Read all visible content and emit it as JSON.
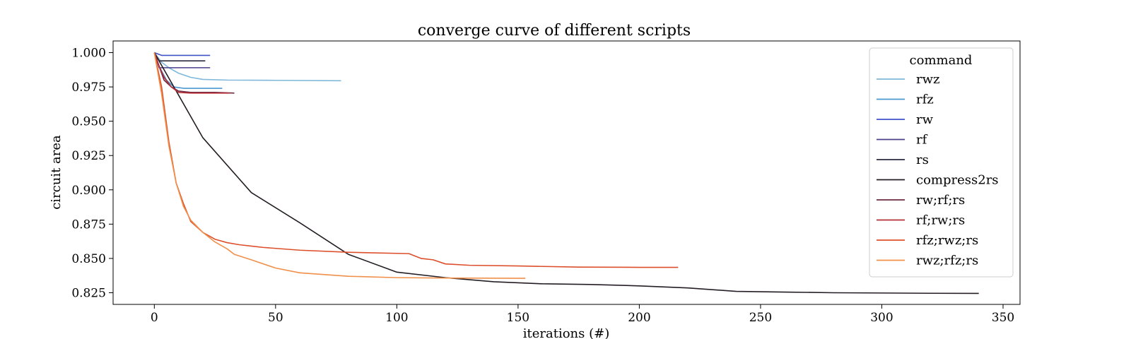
{
  "chart_data": {
    "type": "line",
    "title": "converge curve of different scripts",
    "xlabel": "iterations (#)",
    "ylabel": "circuit area",
    "xlim": [
      -17,
      357
    ],
    "ylim": [
      0.8165,
      1.0085
    ],
    "xticks": [
      0,
      50,
      100,
      150,
      200,
      250,
      300,
      350
    ],
    "yticks": [
      0.825,
      0.85,
      0.875,
      0.9,
      0.925,
      0.95,
      0.975,
      1.0
    ],
    "ytick_format": 3,
    "grid": false,
    "legend": {
      "title": "command",
      "placement": "right"
    },
    "series": [
      {
        "name": "rwz",
        "color": "#7fb8da",
        "points": [
          [
            0,
            1.0
          ],
          [
            3,
            0.993
          ],
          [
            6,
            0.989
          ],
          [
            10,
            0.985
          ],
          [
            15,
            0.982
          ],
          [
            20,
            0.9805
          ],
          [
            30,
            0.98
          ],
          [
            50,
            0.9798
          ],
          [
            77,
            0.9795
          ]
        ]
      },
      {
        "name": "rfz",
        "color": "#4a98d0",
        "points": [
          [
            0,
            1.0
          ],
          [
            2,
            0.99
          ],
          [
            5,
            0.98
          ],
          [
            8,
            0.975
          ],
          [
            12,
            0.974
          ],
          [
            20,
            0.974
          ],
          [
            28,
            0.974
          ]
        ]
      },
      {
        "name": "rw",
        "color": "#3f52c9",
        "points": [
          [
            0,
            1.0
          ],
          [
            3,
            0.998
          ],
          [
            10,
            0.998
          ],
          [
            23,
            0.998
          ]
        ]
      },
      {
        "name": "rf",
        "color": "#4a3f8a",
        "points": [
          [
            0,
            1.0
          ],
          [
            2,
            0.989
          ],
          [
            10,
            0.989
          ],
          [
            23,
            0.989
          ]
        ]
      },
      {
        "name": "rs",
        "color": "#2a2a3f",
        "points": [
          [
            0,
            1.0
          ],
          [
            2,
            0.994
          ],
          [
            10,
            0.994
          ],
          [
            21,
            0.994
          ]
        ]
      },
      {
        "name": "compress2rs",
        "color": "#241e24",
        "points": [
          [
            0,
            1.0
          ],
          [
            20,
            0.938
          ],
          [
            40,
            0.898
          ],
          [
            60,
            0.876
          ],
          [
            80,
            0.853
          ],
          [
            100,
            0.84
          ],
          [
            120,
            0.836
          ],
          [
            140,
            0.833
          ],
          [
            160,
            0.8315
          ],
          [
            180,
            0.831
          ],
          [
            200,
            0.83
          ],
          [
            220,
            0.8285
          ],
          [
            240,
            0.826
          ],
          [
            260,
            0.8255
          ],
          [
            280,
            0.825
          ],
          [
            300,
            0.8248
          ],
          [
            320,
            0.8246
          ],
          [
            340,
            0.8245
          ]
        ]
      },
      {
        "name": "rw;rf;rs",
        "color": "#6b2a3f",
        "points": [
          [
            0,
            1.0
          ],
          [
            2,
            0.99
          ],
          [
            4,
            0.98
          ],
          [
            7,
            0.975
          ],
          [
            10,
            0.972
          ],
          [
            15,
            0.971
          ],
          [
            25,
            0.971
          ],
          [
            33,
            0.9705
          ]
        ]
      },
      {
        "name": "rf;rw;rs",
        "color": "#b42d37",
        "points": [
          [
            0,
            1.0
          ],
          [
            2,
            0.99
          ],
          [
            4,
            0.982
          ],
          [
            7,
            0.975
          ],
          [
            10,
            0.971
          ],
          [
            15,
            0.9705
          ],
          [
            25,
            0.9705
          ],
          [
            31,
            0.9705
          ]
        ]
      },
      {
        "name": "rfz;rwz;rs",
        "color": "#dc4f2a",
        "points": [
          [
            0,
            1.0
          ],
          [
            3,
            0.975
          ],
          [
            6,
            0.935
          ],
          [
            9,
            0.905
          ],
          [
            12,
            0.89
          ],
          [
            15,
            0.877
          ],
          [
            20,
            0.869
          ],
          [
            25,
            0.864
          ],
          [
            30,
            0.8615
          ],
          [
            35,
            0.86
          ],
          [
            40,
            0.859
          ],
          [
            45,
            0.858
          ],
          [
            60,
            0.856
          ],
          [
            80,
            0.8545
          ],
          [
            105,
            0.8535
          ],
          [
            110,
            0.85
          ],
          [
            115,
            0.849
          ],
          [
            120,
            0.846
          ],
          [
            130,
            0.845
          ],
          [
            150,
            0.8445
          ],
          [
            175,
            0.8437
          ],
          [
            200,
            0.8435
          ],
          [
            216,
            0.8435
          ]
        ]
      },
      {
        "name": "rwz;rfz;rs",
        "color": "#f0904a",
        "points": [
          [
            0,
            1.0
          ],
          [
            3,
            0.97
          ],
          [
            6,
            0.932
          ],
          [
            9,
            0.905
          ],
          [
            12,
            0.888
          ],
          [
            15,
            0.878
          ],
          [
            20,
            0.869
          ],
          [
            25,
            0.862
          ],
          [
            30,
            0.857
          ],
          [
            33,
            0.853
          ],
          [
            40,
            0.849
          ],
          [
            50,
            0.843
          ],
          [
            60,
            0.8395
          ],
          [
            80,
            0.837
          ],
          [
            100,
            0.836
          ],
          [
            120,
            0.8357
          ],
          [
            153,
            0.8355
          ]
        ]
      }
    ]
  }
}
